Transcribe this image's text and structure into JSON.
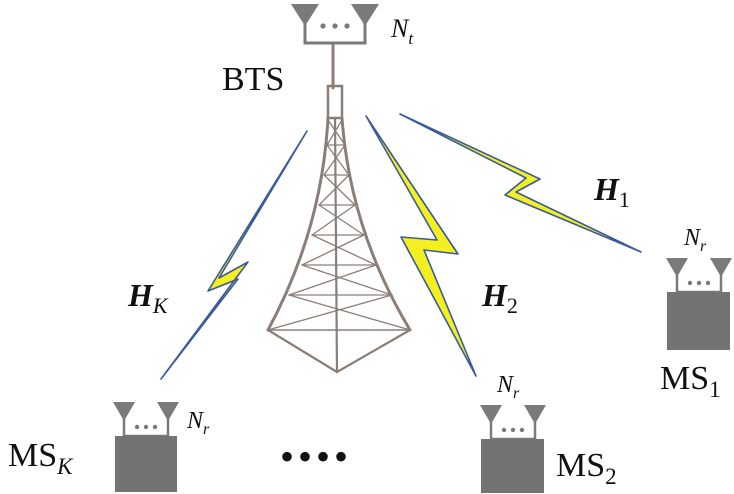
{
  "colors": {
    "tower": "#8a7f78",
    "antenna": "#7a7a7a",
    "terminal": "#737373",
    "link_fill": "#f4ef1e",
    "link_edge": "#3a5a9a"
  },
  "bts": {
    "label": "BTS",
    "antenna_count": {
      "base": "N",
      "sub": "t"
    }
  },
  "links": [
    {
      "name": "H",
      "sub": "1"
    },
    {
      "name": "H",
      "sub": "2"
    },
    {
      "name": "H",
      "sub": "K"
    }
  ],
  "terminals": [
    {
      "base": "MS",
      "sub": "1",
      "antenna": {
        "base": "N",
        "sub": "r"
      }
    },
    {
      "base": "MS",
      "sub": "2",
      "antenna": {
        "base": "N",
        "sub": "r"
      }
    },
    {
      "base": "MS",
      "sub": "K",
      "antenna": {
        "base": "N",
        "sub": "r"
      }
    }
  ],
  "ellipsis": "••••"
}
